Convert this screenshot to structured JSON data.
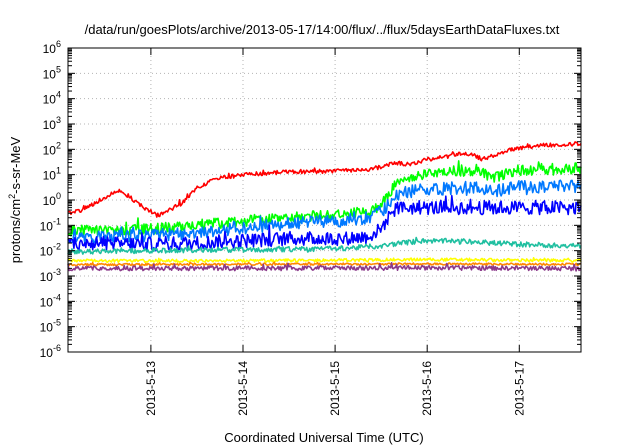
{
  "chart_data": {
    "type": "line",
    "title": "/data/run/goesPlots/archive/2013-05-17/14:00/flux/../flux/5daysEarthDataFluxes.txt",
    "xlabel": "Coordinated Universal Time (UTC)",
    "ylabel": {
      "base": "protons/cm",
      "superscript": "2",
      "rest": "-s-sr-MeV"
    },
    "yscale": "log",
    "ylim": [
      1e-06,
      1000000.0
    ],
    "y_ticks": [
      {
        "exp": -6,
        "base": "10",
        "sup": "-6"
      },
      {
        "exp": -5,
        "base": "10",
        "sup": "-5"
      },
      {
        "exp": -4,
        "base": "10",
        "sup": "-4"
      },
      {
        "exp": -3,
        "base": "10",
        "sup": "-3"
      },
      {
        "exp": -2,
        "base": "10",
        "sup": "-2"
      },
      {
        "exp": -1,
        "base": "10",
        "sup": "-1"
      },
      {
        "exp": 0,
        "base": "10",
        "sup": "0"
      },
      {
        "exp": 1,
        "base": "10",
        "sup": "1"
      },
      {
        "exp": 2,
        "base": "10",
        "sup": "2"
      },
      {
        "exp": 3,
        "base": "10",
        "sup": "3"
      },
      {
        "exp": 4,
        "base": "10",
        "sup": "4"
      },
      {
        "exp": 5,
        "base": "10",
        "sup": "5"
      },
      {
        "exp": 6,
        "base": "10",
        "sup": "6"
      }
    ],
    "xlim_days": [
      12.1,
      17.67
    ],
    "x_ticks": [
      {
        "label": "2013-5-13",
        "day": 13
      },
      {
        "label": "2013-5-14",
        "day": 14
      },
      {
        "label": "2013-5-15",
        "day": 15
      },
      {
        "label": "2013-5-16",
        "day": 16
      },
      {
        "label": "2013-5-17",
        "day": 17
      }
    ],
    "grid": true,
    "legend": "none",
    "series": [
      {
        "color": "#ff0000",
        "noise": 0.08,
        "points": [
          [
            12.1,
            0.3
          ],
          [
            12.25,
            0.4
          ],
          [
            12.4,
            0.8
          ],
          [
            12.55,
            1.5
          ],
          [
            12.65,
            2.5
          ],
          [
            12.75,
            1.5
          ],
          [
            12.85,
            0.8
          ],
          [
            12.95,
            0.4
          ],
          [
            13.1,
            0.25
          ],
          [
            13.2,
            0.4
          ],
          [
            13.35,
            0.8
          ],
          [
            13.5,
            3
          ],
          [
            13.7,
            7
          ],
          [
            14.0,
            10
          ],
          [
            14.5,
            13
          ],
          [
            15.0,
            14
          ],
          [
            15.3,
            15
          ],
          [
            15.5,
            20
          ],
          [
            15.65,
            30
          ],
          [
            15.8,
            25
          ],
          [
            16.0,
            40
          ],
          [
            16.2,
            50
          ],
          [
            16.35,
            70
          ],
          [
            16.5,
            60
          ],
          [
            16.6,
            40
          ],
          [
            16.75,
            60
          ],
          [
            16.9,
            100
          ],
          [
            17.2,
            140
          ],
          [
            17.67,
            170
          ]
        ]
      },
      {
        "color": "#00ff00",
        "noise": 0.22,
        "points": [
          [
            12.1,
            0.06
          ],
          [
            13.0,
            0.07
          ],
          [
            13.5,
            0.1
          ],
          [
            14.0,
            0.15
          ],
          [
            14.5,
            0.2
          ],
          [
            15.0,
            0.25
          ],
          [
            15.4,
            0.35
          ],
          [
            15.55,
            1.0
          ],
          [
            15.65,
            4
          ],
          [
            15.8,
            8
          ],
          [
            16.0,
            12
          ],
          [
            16.3,
            14
          ],
          [
            16.6,
            12
          ],
          [
            16.7,
            7
          ],
          [
            16.8,
            10
          ],
          [
            17.0,
            15
          ],
          [
            17.3,
            17
          ],
          [
            17.67,
            18
          ]
        ]
      },
      {
        "color": "#0078ff",
        "noise": 0.25,
        "points": [
          [
            12.1,
            0.03
          ],
          [
            13.0,
            0.04
          ],
          [
            13.5,
            0.05
          ],
          [
            14.0,
            0.08
          ],
          [
            14.5,
            0.12
          ],
          [
            15.0,
            0.15
          ],
          [
            15.4,
            0.2
          ],
          [
            15.55,
            0.5
          ],
          [
            15.65,
            1.5
          ],
          [
            15.8,
            2.2
          ],
          [
            16.0,
            2.5
          ],
          [
            16.3,
            3
          ],
          [
            16.6,
            3
          ],
          [
            16.7,
            2
          ],
          [
            16.8,
            2.5
          ],
          [
            17.0,
            3.2
          ],
          [
            17.3,
            3.5
          ],
          [
            17.67,
            3.5
          ]
        ]
      },
      {
        "color": "#0000ff",
        "noise": 0.28,
        "points": [
          [
            12.1,
            0.02
          ],
          [
            13.0,
            0.018
          ],
          [
            13.5,
            0.02
          ],
          [
            14.0,
            0.025
          ],
          [
            14.5,
            0.03
          ],
          [
            15.0,
            0.03
          ],
          [
            15.35,
            0.035
          ],
          [
            15.5,
            0.07
          ],
          [
            15.6,
            0.3
          ],
          [
            15.7,
            0.5
          ],
          [
            16.0,
            0.5
          ],
          [
            16.5,
            0.5
          ],
          [
            17.0,
            0.5
          ],
          [
            17.67,
            0.5
          ]
        ]
      },
      {
        "color": "#1fbfa0",
        "noise": 0.1,
        "points": [
          [
            12.1,
            0.009
          ],
          [
            13.0,
            0.01
          ],
          [
            14.0,
            0.011
          ],
          [
            15.0,
            0.012
          ],
          [
            15.5,
            0.015
          ],
          [
            15.7,
            0.02
          ],
          [
            16.0,
            0.025
          ],
          [
            16.5,
            0.022
          ],
          [
            17.0,
            0.018
          ],
          [
            17.67,
            0.015
          ]
        ]
      },
      {
        "color": "#ffff00",
        "noise": 0.06,
        "points": [
          [
            12.1,
            0.004
          ],
          [
            14.0,
            0.004
          ],
          [
            15.0,
            0.0042
          ],
          [
            16.0,
            0.0045
          ],
          [
            17.0,
            0.0042
          ],
          [
            17.67,
            0.004
          ]
        ]
      },
      {
        "color": "#ff8800",
        "noise": 0.04,
        "points": [
          [
            12.1,
            0.0028
          ],
          [
            14.0,
            0.0029
          ],
          [
            16.0,
            0.003
          ],
          [
            17.67,
            0.0029
          ]
        ]
      },
      {
        "color": "#8b3a8b",
        "noise": 0.09,
        "points": [
          [
            12.1,
            0.002
          ],
          [
            14.0,
            0.002
          ],
          [
            16.0,
            0.0021
          ],
          [
            17.67,
            0.002
          ]
        ]
      }
    ]
  }
}
